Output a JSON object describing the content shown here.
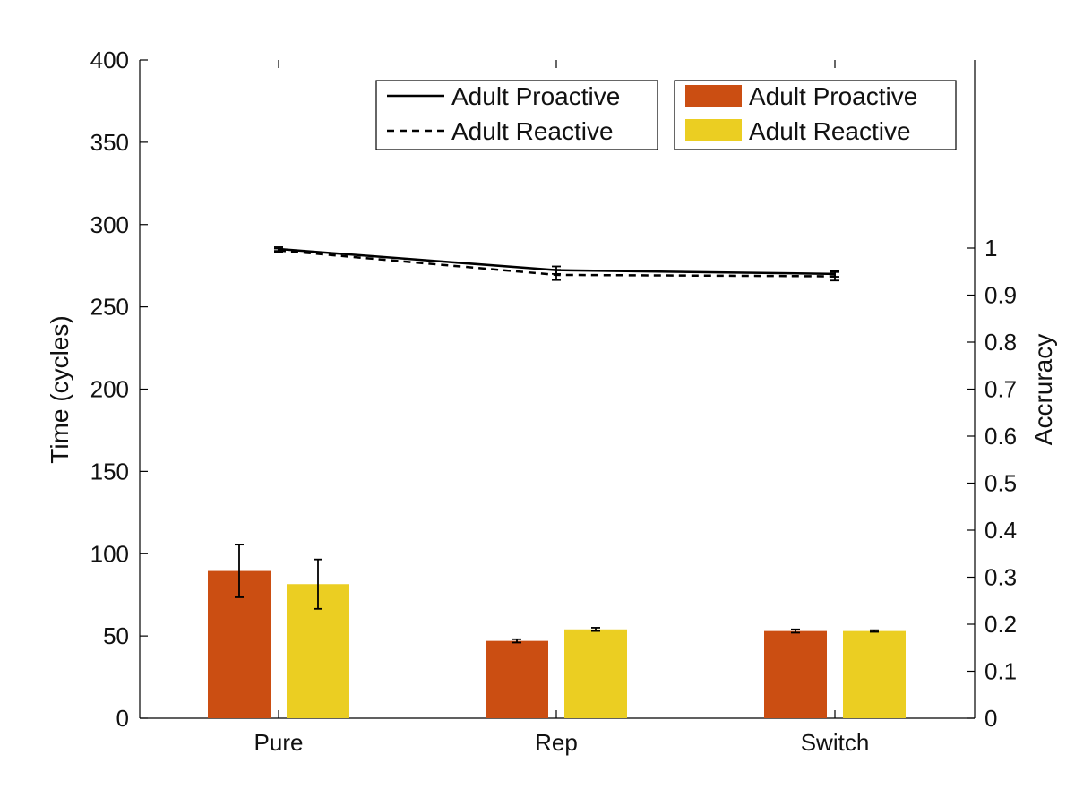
{
  "chart_data": {
    "type": "bar",
    "categories": [
      "Pure",
      "Rep",
      "Switch"
    ],
    "xlabel": "",
    "y_left": {
      "label": "Time (cycles)",
      "lim": [
        0,
        400
      ],
      "ticks": [
        0,
        50,
        100,
        150,
        200,
        250,
        300,
        350,
        400
      ]
    },
    "y_right": {
      "label": "Accruracy",
      "lim": [
        0,
        1.4
      ],
      "ticks": [
        0,
        0.1,
        0.2,
        0.3,
        0.4,
        0.5,
        0.6,
        0.7,
        0.8,
        0.9,
        1
      ]
    },
    "bar_series": [
      {
        "name": "Adult Proactive",
        "color": "#CB4E12",
        "values": [
          89.5,
          47,
          53
        ],
        "error": [
          16,
          1,
          1
        ]
      },
      {
        "name": "Adult Reactive",
        "color": "#EBCE22",
        "values": [
          81.5,
          54,
          53
        ],
        "error": [
          15,
          1,
          0.5
        ]
      }
    ],
    "line_series": [
      {
        "name": "Adult Proactive",
        "style": "solid",
        "values": [
          0.998,
          0.953,
          0.945
        ],
        "error": [
          0.004,
          0.008,
          0.006
        ]
      },
      {
        "name": "Adult Reactive",
        "style": "dashed",
        "values": [
          0.995,
          0.943,
          0.94
        ],
        "error": [
          0.004,
          0.011,
          0.009
        ]
      }
    ],
    "legend_lines_position": "top-center",
    "legend_bars_position": "top-right",
    "grid": false
  }
}
